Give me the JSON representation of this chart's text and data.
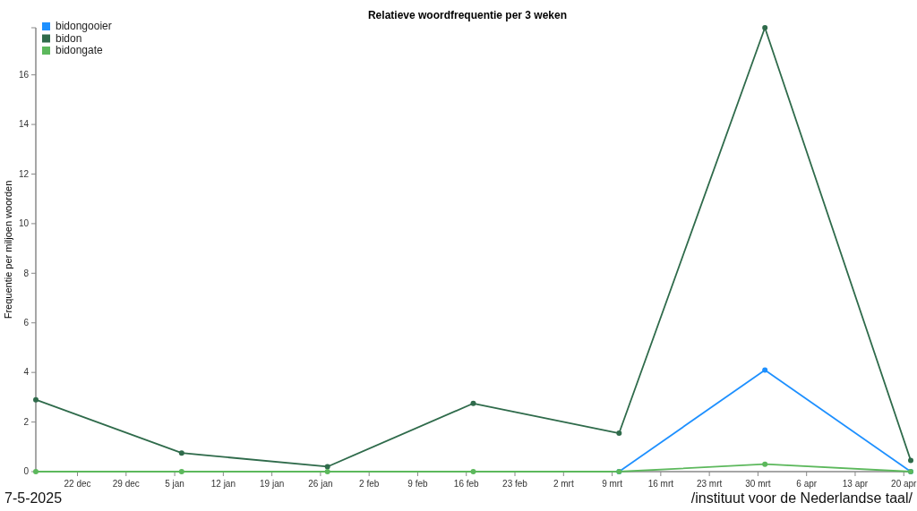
{
  "chart_data": {
    "type": "line",
    "title": "Relatieve woordfrequentie per 3 weken",
    "ylabel": "Frequentie per miljoen woorden",
    "x": [
      "2024-12-16",
      "2025-01-06",
      "2025-01-27",
      "2025-02-17",
      "2025-03-10",
      "2025-03-31",
      "2025-04-21"
    ],
    "series": [
      {
        "name": "bidongooier",
        "color": "#1e90ff",
        "values": [
          null,
          null,
          null,
          null,
          0,
          4.1,
          0
        ]
      },
      {
        "name": "bidon",
        "color": "#2f6b4b",
        "values": [
          2.9,
          0.75,
          0.2,
          2.75,
          1.55,
          17.9,
          0.45
        ]
      },
      {
        "name": "bidongate",
        "color": "#5cb85c",
        "values": [
          0,
          0,
          0,
          0,
          0,
          0.3,
          0
        ]
      }
    ],
    "xlim": [
      "2024-12-16",
      "2025-04-21"
    ],
    "xticks": [
      {
        "value": "2024-12-22",
        "label": "22 dec"
      },
      {
        "value": "2024-12-29",
        "label": "29 dec"
      },
      {
        "value": "2025-01-05",
        "label": "5 jan"
      },
      {
        "value": "2025-01-12",
        "label": "12 jan"
      },
      {
        "value": "2025-01-19",
        "label": "19 jan"
      },
      {
        "value": "2025-01-26",
        "label": "26 jan"
      },
      {
        "value": "2025-02-02",
        "label": "2 feb"
      },
      {
        "value": "2025-02-09",
        "label": "9 feb"
      },
      {
        "value": "2025-02-16",
        "label": "16 feb"
      },
      {
        "value": "2025-02-23",
        "label": "23 feb"
      },
      {
        "value": "2025-03-02",
        "label": "2 mrt"
      },
      {
        "value": "2025-03-09",
        "label": "9 mrt"
      },
      {
        "value": "2025-03-16",
        "label": "16 mrt"
      },
      {
        "value": "2025-03-23",
        "label": "23 mrt"
      },
      {
        "value": "2025-03-30",
        "label": "30 mrt"
      },
      {
        "value": "2025-04-06",
        "label": "6 apr"
      },
      {
        "value": "2025-04-13",
        "label": "13 apr"
      },
      {
        "value": "2025-04-20",
        "label": "20 apr"
      }
    ],
    "ylim": [
      0,
      17.9
    ],
    "yticks": [
      0,
      2,
      4,
      6,
      8,
      10,
      12,
      14,
      16,
      {
        "value": 17.9,
        "label": null
      }
    ],
    "grid": false,
    "legend": "top left",
    "marker": "circle",
    "line_style": "solid",
    "annotations": [
      "7-5-2025",
      "/instituut voor de Nederlandse taal/"
    ]
  }
}
